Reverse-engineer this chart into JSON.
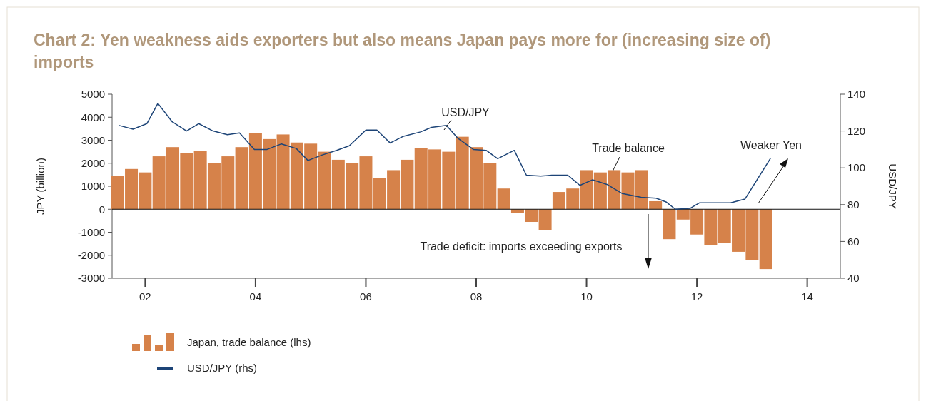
{
  "chart_data": {
    "type": "bar",
    "title": "Chart 2: Yen weakness aids exporters but also means Japan pays more for (increasing size of) imports",
    "ylabel": "JPY (billion)",
    "y2label": "USD/JPY",
    "xlim": [
      2001.4,
      2014.6
    ],
    "xticks": [
      {
        "value": 2002,
        "label": "02"
      },
      {
        "value": 2004,
        "label": "04"
      },
      {
        "value": 2006,
        "label": "06"
      },
      {
        "value": 2008,
        "label": "08"
      },
      {
        "value": 2010,
        "label": "10"
      },
      {
        "value": 2012,
        "label": "12"
      },
      {
        "value": 2014,
        "label": "14"
      }
    ],
    "ylim": [
      -3000,
      5000
    ],
    "yticks": [
      -3000,
      -2000,
      -1000,
      0,
      1000,
      2000,
      3000,
      4000,
      5000
    ],
    "y2lim": [
      40,
      140
    ],
    "y2ticks": [
      40,
      60,
      80,
      100,
      120,
      140
    ],
    "legend": "bottom",
    "series": [
      {
        "name": "Japan, trade balance (lhs)",
        "type": "bar",
        "color": "#d6824a",
        "x": [
          2001.5,
          2001.75,
          2002,
          2002.25,
          2002.5,
          2002.75,
          2003,
          2003.25,
          2003.5,
          2003.75,
          2004,
          2004.25,
          2004.5,
          2004.75,
          2005,
          2005.25,
          2005.5,
          2005.75,
          2006,
          2006.25,
          2006.5,
          2006.75,
          2007,
          2007.25,
          2007.5,
          2007.75,
          2008,
          2008.25,
          2008.5,
          2008.75,
          2009,
          2009.25,
          2009.5,
          2009.75,
          2010,
          2010.25,
          2010.5,
          2010.75,
          2011,
          2011.25,
          2011.5,
          2011.75,
          2012,
          2012.25,
          2012.5,
          2012.75,
          2013,
          2013.25
        ],
        "values": [
          1450,
          1750,
          1600,
          2300,
          2700,
          2450,
          2550,
          2000,
          2300,
          2700,
          3300,
          3050,
          3250,
          2900,
          2850,
          2500,
          2150,
          2000,
          2300,
          1350,
          1700,
          2150,
          2650,
          2600,
          2500,
          3150,
          2700,
          2000,
          900,
          -150,
          -550,
          -900,
          750,
          900,
          1700,
          1600,
          1700,
          1600,
          1700,
          350,
          -1300,
          -450,
          -1100,
          -1550,
          -1450,
          -1850,
          -2200,
          -2600
        ]
      },
      {
        "name": "USD/JPY (rhs)",
        "type": "line",
        "axis": "y2",
        "color": "#1d4477",
        "x": [
          2001.53,
          2001.78,
          2002.03,
          2002.23,
          2002.49,
          2002.75,
          2002.97,
          2003.23,
          2003.49,
          2003.71,
          2003.98,
          2004.21,
          2004.47,
          2004.74,
          2004.95,
          2005.21,
          2005.47,
          2005.7,
          2006,
          2006.2,
          2006.44,
          2006.67,
          2006.99,
          2007.19,
          2007.46,
          2007.67,
          2007.95,
          2008.18,
          2008.39,
          2008.69,
          2008.91,
          2009.17,
          2009.37,
          2009.66,
          2009.88,
          2010.11,
          2010.37,
          2010.65,
          2010.99,
          2011.26,
          2011.44,
          2011.61,
          2011.88,
          2012.05,
          2012.39,
          2012.61,
          2012.87,
          2013.33
        ],
        "values": [
          123,
          121,
          124,
          135,
          125,
          120,
          124,
          120,
          118,
          119,
          110,
          110,
          113,
          110.5,
          104,
          107,
          109.5,
          112,
          120.5,
          120.5,
          113.5,
          117,
          119.5,
          122,
          123,
          116,
          110,
          109.5,
          105,
          109.5,
          96,
          95.5,
          96,
          96,
          90.5,
          93.5,
          91,
          86,
          84,
          83.5,
          81.5,
          77.5,
          78,
          81,
          81,
          81,
          83,
          105
        ]
      }
    ],
    "annotations": [
      "USD/JPY",
      "Trade balance",
      "Weaker Yen",
      "Trade deficit: imports exceeding exports"
    ]
  }
}
